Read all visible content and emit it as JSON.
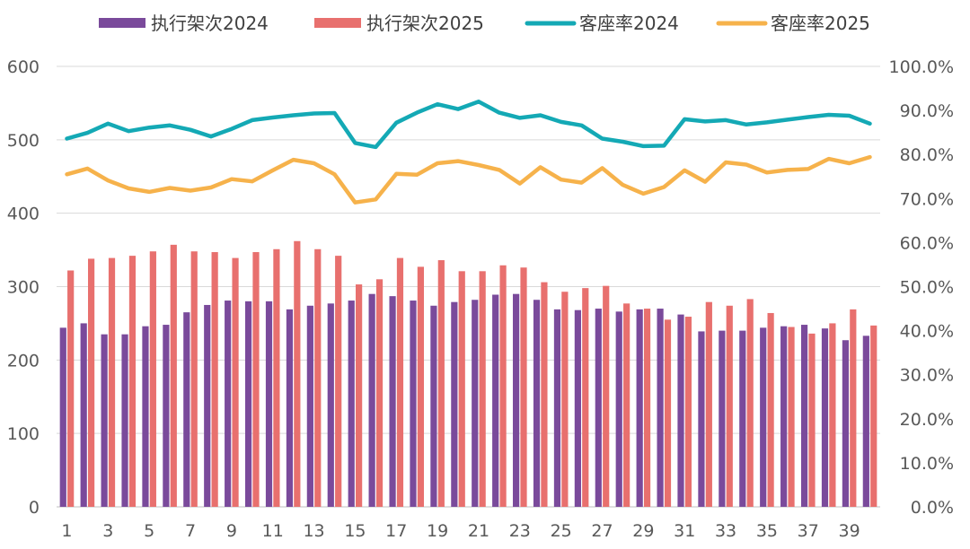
{
  "chart_data": {
    "type": "bar",
    "title": "",
    "xlabel": "",
    "ylabel": "",
    "x": [
      1,
      2,
      3,
      4,
      5,
      6,
      7,
      8,
      9,
      10,
      11,
      12,
      13,
      14,
      15,
      16,
      17,
      18,
      19,
      20,
      21,
      22,
      23,
      24,
      25,
      26,
      27,
      28,
      29,
      30,
      31,
      32,
      33,
      34,
      35,
      36,
      37,
      38,
      39,
      40
    ],
    "x_tick_labels": [
      "1",
      "3",
      "5",
      "7",
      "9",
      "11",
      "13",
      "15",
      "17",
      "19",
      "21",
      "23",
      "25",
      "27",
      "29",
      "31",
      "33",
      "35",
      "37",
      "39"
    ],
    "ylim_left": [
      0,
      600
    ],
    "y_ticks_left": [
      "0",
      "100",
      "200",
      "300",
      "400",
      "500",
      "600"
    ],
    "ylim_right": [
      0,
      100
    ],
    "y_ticks_right": [
      "0.0%",
      "10.0%",
      "20.0%",
      "30.0%",
      "40.0%",
      "50.0%",
      "60.0%",
      "70.0%",
      "80.0%",
      "90.0%",
      "100.0%"
    ],
    "grid": true,
    "legend_position": "top",
    "series": [
      {
        "name": "执行架次2024",
        "type": "bar",
        "axis": "left",
        "color": "#7A4A9B",
        "values": [
          244,
          250,
          235,
          235,
          246,
          248,
          265,
          275,
          281,
          280,
          280,
          269,
          274,
          277,
          281,
          290,
          287,
          281,
          274,
          279,
          282,
          289,
          290,
          282,
          269,
          268,
          270,
          266,
          269,
          270,
          262,
          239,
          240,
          240,
          244,
          246,
          248,
          243,
          227,
          233
        ]
      },
      {
        "name": "执行架次2025",
        "type": "bar",
        "axis": "left",
        "color": "#E8706E",
        "values": [
          322,
          338,
          339,
          342,
          348,
          357,
          348,
          347,
          339,
          347,
          351,
          362,
          351,
          342,
          303,
          310,
          339,
          327,
          336,
          321,
          321,
          329,
          326,
          306,
          293,
          298,
          301,
          277,
          270,
          255,
          259,
          279,
          274,
          283,
          264,
          245,
          236,
          250,
          269,
          247
        ]
      },
      {
        "name": "客座率2024",
        "type": "line",
        "axis": "right",
        "color": "#14A9B5",
        "values": [
          83.6,
          84.9,
          87.0,
          85.3,
          86.1,
          86.6,
          85.6,
          84.1,
          85.8,
          87.8,
          88.4,
          88.9,
          89.3,
          89.4,
          82.6,
          81.7,
          87.2,
          89.5,
          91.4,
          90.3,
          92.0,
          89.5,
          88.3,
          88.9,
          87.4,
          86.6,
          83.6,
          82.9,
          81.9,
          82.0,
          88.0,
          87.5,
          87.8,
          86.8,
          87.3,
          87.9,
          88.5,
          89.0,
          88.8,
          87.0
        ]
      },
      {
        "name": "客座率2025",
        "type": "line",
        "axis": "right",
        "color": "#F6B24B",
        "values": [
          75.5,
          76.8,
          74.1,
          72.3,
          71.5,
          72.4,
          71.8,
          72.5,
          74.4,
          73.9,
          76.4,
          78.8,
          78.0,
          75.5,
          69.1,
          69.8,
          75.6,
          75.4,
          78.0,
          78.5,
          77.6,
          76.5,
          73.4,
          77.1,
          74.3,
          73.6,
          76.9,
          73.1,
          71.1,
          72.6,
          76.4,
          73.8,
          78.2,
          77.7,
          75.9,
          76.5,
          76.7,
          79.0,
          78.0,
          79.4
        ]
      }
    ]
  }
}
